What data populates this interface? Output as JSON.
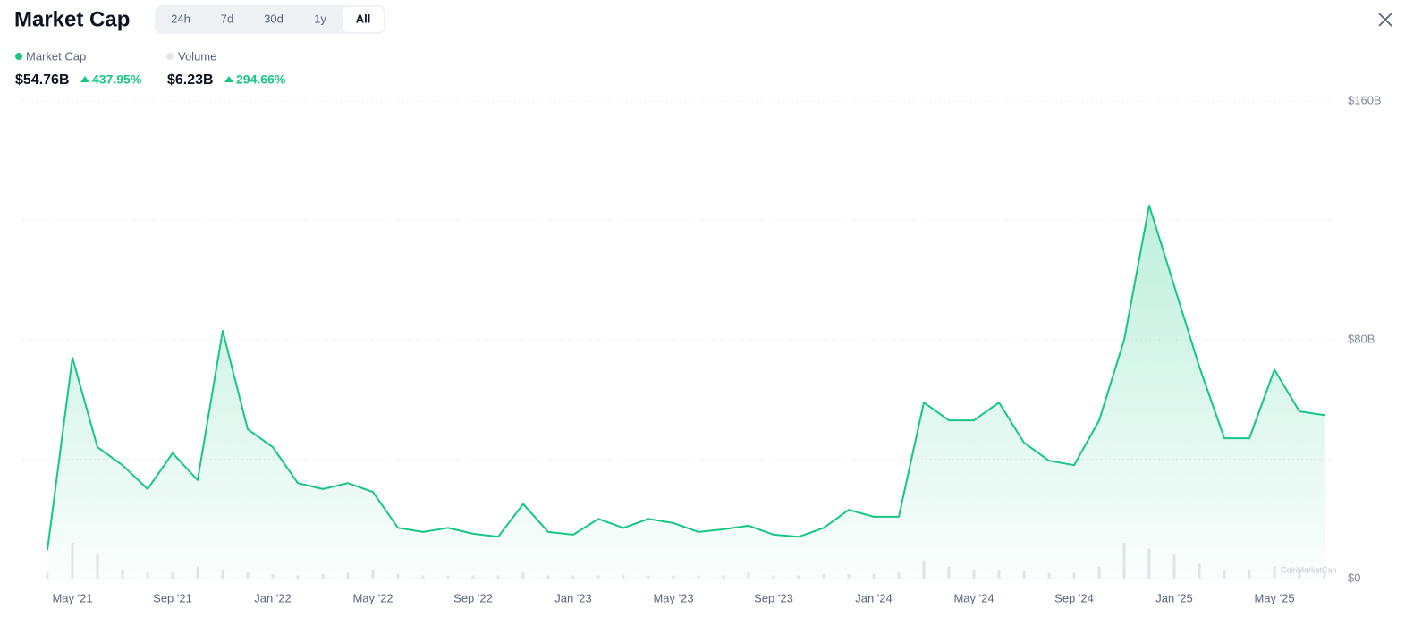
{
  "header": {
    "title": "Market Cap",
    "tabs": [
      "24h",
      "7d",
      "30d",
      "1y",
      "All"
    ],
    "active_tab": 4
  },
  "summary": [
    {
      "value": "$54.76B",
      "change": "437.95%"
    },
    {
      "value": "$6.23B",
      "change": "294.66%"
    }
  ],
  "chart_data": {
    "type": "area",
    "x": [
      "2021-04",
      "2021-05",
      "2021-06",
      "2021-07",
      "2021-08",
      "2021-09",
      "2021-10",
      "2021-11",
      "2021-12",
      "2022-01",
      "2022-02",
      "2022-03",
      "2022-04",
      "2022-05",
      "2022-06",
      "2022-07",
      "2022-08",
      "2022-09",
      "2022-10",
      "2022-11",
      "2022-12",
      "2023-01",
      "2023-02",
      "2023-03",
      "2023-04",
      "2023-05",
      "2023-06",
      "2023-07",
      "2023-08",
      "2023-09",
      "2023-10",
      "2023-11",
      "2023-12",
      "2024-01",
      "2024-02",
      "2024-03",
      "2024-04",
      "2024-05",
      "2024-06",
      "2024-07",
      "2024-08",
      "2024-09",
      "2024-10",
      "2024-11",
      "2024-12",
      "2025-01",
      "2025-02",
      "2025-03",
      "2025-04",
      "2025-05",
      "2025-06",
      "2025-07"
    ],
    "series": [
      {
        "name": "Volume",
        "type": "bar",
        "color": "#e3e6ea",
        "values": [
          2,
          12,
          8,
          3,
          2,
          2,
          4,
          3,
          2,
          1.5,
          1,
          1.5,
          2,
          3,
          1.5,
          1,
          1,
          1,
          1,
          2,
          1,
          1,
          1,
          1.2,
          1,
          1,
          1,
          1,
          2,
          1,
          1,
          1.5,
          1.5,
          1.5,
          2,
          6,
          4,
          3,
          3,
          2.5,
          2,
          2,
          4,
          12,
          10,
          8,
          5,
          3,
          3,
          4,
          3,
          2
        ]
      },
      {
        "name": "Market Cap",
        "type": "area",
        "color": "#16c784",
        "values": [
          9.6,
          74,
          44,
          38,
          30,
          42,
          33,
          83,
          50,
          44,
          32,
          30,
          32,
          29,
          17,
          15.6,
          17,
          15,
          14,
          25,
          15.6,
          14.7,
          20,
          17,
          20,
          18.6,
          15.6,
          16.5,
          17.7,
          14.7,
          14,
          17,
          23,
          20.7,
          20.7,
          59,
          53,
          53,
          59,
          45.5,
          39.5,
          38,
          53,
          80,
          125,
          98,
          71,
          47,
          47,
          70,
          56,
          54.76
        ]
      }
    ],
    "xlim": [
      "2021-03",
      "2025-08"
    ],
    "xticks": [
      {
        "value": "2021-05",
        "label": "May '21"
      },
      {
        "value": "2021-09",
        "label": "Sep '21"
      },
      {
        "value": "2022-01",
        "label": "Jan '22"
      },
      {
        "value": "2022-05",
        "label": "May '22"
      },
      {
        "value": "2022-09",
        "label": "Sep '22"
      },
      {
        "value": "2023-01",
        "label": "Jan '23"
      },
      {
        "value": "2023-05",
        "label": "May '23"
      },
      {
        "value": "2023-09",
        "label": "Sep '23"
      },
      {
        "value": "2024-01",
        "label": "Jan '24"
      },
      {
        "value": "2024-05",
        "label": "May '24"
      },
      {
        "value": "2024-09",
        "label": "Sep '24"
      },
      {
        "value": "2025-01",
        "label": "Jan '25"
      },
      {
        "value": "2025-05",
        "label": "May '25"
      }
    ],
    "ylim": [
      0,
      160
    ],
    "yticks": [
      {
        "value": 0,
        "label": "$0"
      },
      {
        "value": 40,
        "label": null
      },
      {
        "value": 80,
        "label": "$80B"
      },
      {
        "value": 120,
        "label": null
      },
      {
        "value": 160,
        "label": "$160B"
      }
    ],
    "grid": true,
    "watermark": "CoinMarketCap"
  }
}
